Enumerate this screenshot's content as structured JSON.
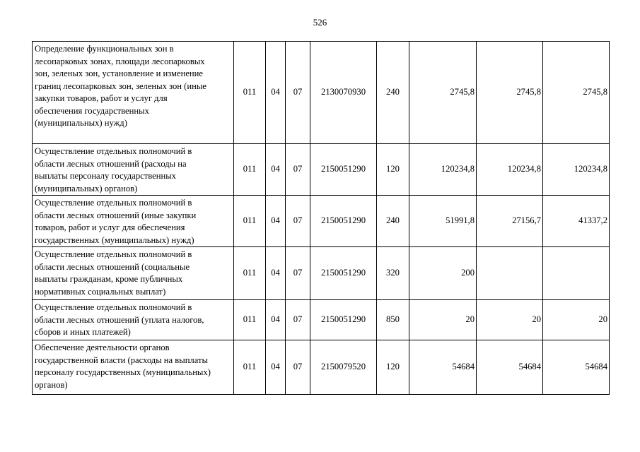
{
  "page_number": "526",
  "rows": [
    {
      "desc": "Определение функциональных зон в\nлесопарковых зонах, площади лесопарковых\nзон, зеленых зон, установление и изменение\nграниц лесопарковых зон, зеленых зон (иные\nзакупки товаров, работ и услуг для\nобеспечения государственных\n(муниципальных) нужд)",
      "ved": "011",
      "rz": "04",
      "pr": "07",
      "csr": "2130070930",
      "vr": "240",
      "v1": "2745,8",
      "v2": "2745,8",
      "v3": "2745,8"
    },
    {
      "desc": "Осуществление отдельных полномочий в\nобласти лесных отношений (расходы на\nвыплаты персоналу государственных\n(муниципальных) органов)",
      "ved": "011",
      "rz": "04",
      "pr": "07",
      "csr": "2150051290",
      "vr": "120",
      "v1": "120234,8",
      "v2": "120234,8",
      "v3": "120234,8"
    },
    {
      "desc": "Осуществление отдельных полномочий в\nобласти лесных отношений (иные закупки\nтоваров, работ и услуг для обеспечения\nгосударственных (муниципальных) нужд)",
      "ved": "011",
      "rz": "04",
      "pr": "07",
      "csr": "2150051290",
      "vr": "240",
      "v1": "51991,8",
      "v2": "27156,7",
      "v3": "41337,2"
    },
    {
      "desc": "Осуществление отдельных полномочий в\nобласти лесных отношений (социальные\nвыплаты гражданам, кроме публичных\nнормативных социальных выплат)",
      "ved": "011",
      "rz": "04",
      "pr": "07",
      "csr": "2150051290",
      "vr": "320",
      "v1": "200",
      "v2": "",
      "v3": ""
    },
    {
      "desc": "Осуществление отдельных полномочий в\nобласти лесных отношений (уплата налогов,\nсборов и иных платежей)",
      "ved": "011",
      "rz": "04",
      "pr": "07",
      "csr": "2150051290",
      "vr": "850",
      "v1": "20",
      "v2": "20",
      "v3": "20"
    },
    {
      "desc": "Обеспечение деятельности органов\nгосударственной власти (расходы на выплаты\nперсоналу государственных (муниципальных)\nорганов)",
      "ved": "011",
      "rz": "04",
      "pr": "07",
      "csr": "2150079520",
      "vr": "120",
      "v1": "54684",
      "v2": "54684",
      "v3": "54684"
    }
  ]
}
